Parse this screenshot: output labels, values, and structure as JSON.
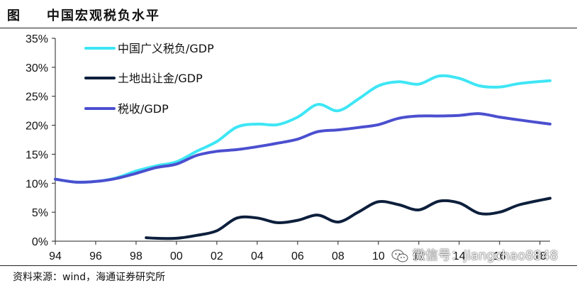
{
  "header": {
    "label": "图",
    "title": "中国宏观税负水平"
  },
  "source": "资料来源：wind，海通证券研究所",
  "watermark": "微信号：jiangchao8848",
  "chart_data": {
    "type": "line",
    "title": "中国宏观税负水平",
    "xlabel": "",
    "ylabel": "",
    "xlim": [
      1994,
      2018.5
    ],
    "ylim": [
      0,
      0.35
    ],
    "x_ticks": [
      1994,
      1996,
      1998,
      2000,
      2002,
      2004,
      2006,
      2008,
      2010,
      2012,
      2014,
      2016,
      2018
    ],
    "x_tick_labels": [
      "94",
      "96",
      "98",
      "00",
      "02",
      "04",
      "06",
      "08",
      "10",
      "12",
      "14",
      "16",
      "18"
    ],
    "y_ticks": [
      0,
      0.05,
      0.1,
      0.15,
      0.2,
      0.25,
      0.3,
      0.35
    ],
    "y_tick_labels": [
      "0%",
      "5%",
      "10%",
      "15%",
      "20%",
      "25%",
      "30%",
      "35%"
    ],
    "legend_position": "top-left",
    "series": [
      {
        "name": "中国广义税负/GDP",
        "color": "#3EE6F5",
        "x": [
          1994,
          1995,
          1996,
          1997,
          1998,
          1999,
          2000,
          2001,
          2002,
          2003,
          2004,
          2005,
          2006,
          2007,
          2008,
          2009,
          2010,
          2011,
          2012,
          2013,
          2014,
          2015,
          2016,
          2017,
          2018.5
        ],
        "values": [
          0.107,
          0.102,
          0.103,
          0.109,
          0.121,
          0.13,
          0.137,
          0.155,
          0.172,
          0.197,
          0.202,
          0.201,
          0.214,
          0.236,
          0.225,
          0.245,
          0.268,
          0.275,
          0.271,
          0.285,
          0.281,
          0.268,
          0.266,
          0.272,
          0.277
        ]
      },
      {
        "name": "土地出让金/GDP",
        "color": "#0D1F3C",
        "x": [
          1998.5,
          1999,
          2000,
          2001,
          2002,
          2003,
          2004,
          2005,
          2006,
          2007,
          2008,
          2009,
          2010,
          2011,
          2012,
          2013,
          2014,
          2015,
          2016,
          2017,
          2018.5
        ],
        "values": [
          0.006,
          0.005,
          0.005,
          0.01,
          0.018,
          0.04,
          0.04,
          0.032,
          0.036,
          0.045,
          0.033,
          0.05,
          0.068,
          0.063,
          0.054,
          0.069,
          0.066,
          0.048,
          0.05,
          0.063,
          0.074
        ]
      },
      {
        "name": "税收/GDP",
        "color": "#4B4FCF",
        "x": [
          1994,
          1995,
          1996,
          1997,
          1998,
          1999,
          2000,
          2001,
          2002,
          2003,
          2004,
          2005,
          2006,
          2007,
          2008,
          2009,
          2010,
          2011,
          2012,
          2013,
          2014,
          2015,
          2016,
          2017,
          2018.5
        ],
        "values": [
          0.107,
          0.102,
          0.103,
          0.108,
          0.117,
          0.127,
          0.133,
          0.148,
          0.155,
          0.158,
          0.163,
          0.169,
          0.176,
          0.189,
          0.192,
          0.196,
          0.201,
          0.212,
          0.216,
          0.216,
          0.217,
          0.22,
          0.214,
          0.209,
          0.202
        ]
      }
    ]
  }
}
